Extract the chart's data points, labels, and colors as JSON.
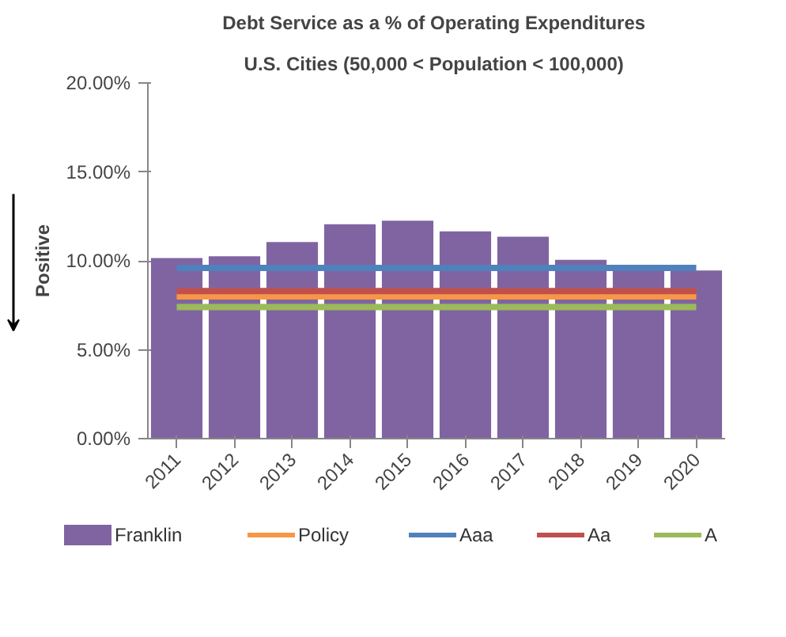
{
  "chart_data": {
    "type": "bar",
    "title": "Debt Service as a % of  Operating Expenditures",
    "subtitle": "U.S. Cities (50,000 < Population  < 100,000)",
    "ylabel": "Positive",
    "categories": [
      "2011",
      "2012",
      "2013",
      "2014",
      "2015",
      "2016",
      "2017",
      "2018",
      "2019",
      "2020"
    ],
    "series": [
      {
        "name": "Franklin",
        "color": "#8064a2",
        "values": [
          10.2,
          10.3,
          11.1,
          12.1,
          12.3,
          11.7,
          11.4,
          10.1,
          9.7,
          9.5
        ]
      },
      {
        "name": "Policy",
        "color": "#f79646",
        "type": "line",
        "values": [
          8.0,
          8.0,
          8.0,
          8.0,
          8.0,
          8.0,
          8.0,
          8.0,
          8.0,
          8.0
        ]
      },
      {
        "name": "Aaa",
        "color": "#4f81bd",
        "type": "line",
        "values": [
          9.6,
          9.6,
          9.6,
          9.6,
          9.6,
          9.6,
          9.6,
          9.6,
          9.6,
          9.6
        ]
      },
      {
        "name": "Aa",
        "color": "#c0504d",
        "type": "line",
        "values": [
          8.3,
          8.3,
          8.3,
          8.3,
          8.3,
          8.3,
          8.3,
          8.3,
          8.3,
          8.3
        ]
      },
      {
        "name": "A",
        "color": "#9bbb59",
        "type": "line",
        "values": [
          7.4,
          7.4,
          7.4,
          7.4,
          7.4,
          7.4,
          7.4,
          7.4,
          7.4,
          7.4
        ]
      }
    ],
    "ylim": [
      0,
      20
    ],
    "yticks": [
      {
        "value": 0,
        "label": "0.00%"
      },
      {
        "value": 5,
        "label": "5.00%"
      },
      {
        "value": 10,
        "label": "10.00%"
      },
      {
        "value": 15,
        "label": "15.00%"
      },
      {
        "value": 20,
        "label": "20.00%"
      }
    ],
    "grid": false,
    "legend": "bottom"
  }
}
